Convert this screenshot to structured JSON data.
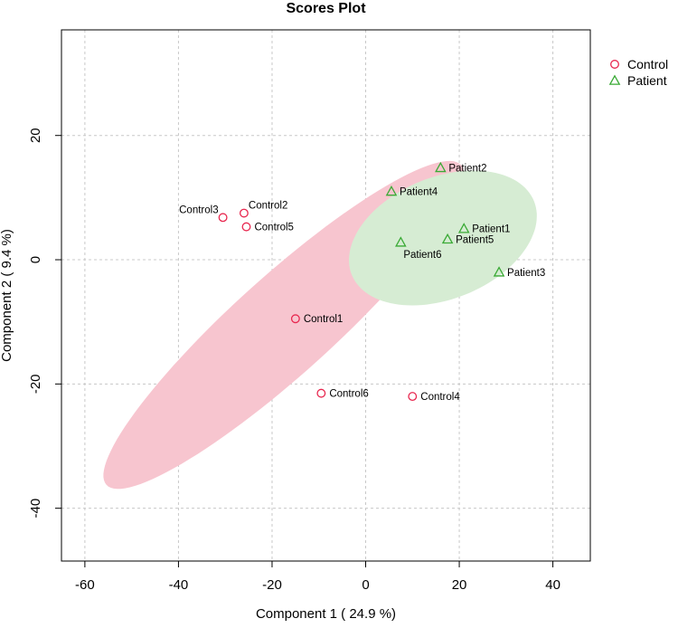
{
  "chart_data": {
    "type": "scatter",
    "title": "Scores Plot",
    "xlabel": "Component 1 ( 24.9 %)",
    "ylabel": "Component 2 ( 9.4 %)",
    "xlim": [
      -65,
      48
    ],
    "ylim": [
      -48.5,
      37
    ],
    "xticks": [
      -60,
      -40,
      -20,
      0,
      20,
      40
    ],
    "yticks": [
      -40,
      -20,
      0,
      20
    ],
    "tick_labels_x": [
      "-60",
      "-40",
      "-20",
      "0",
      "20",
      "40"
    ],
    "tick_labels_y": [
      "-40",
      "-20",
      "0",
      "20"
    ],
    "grid": true,
    "legend_position": "top-right",
    "series": [
      {
        "name": "Control",
        "marker": "circle",
        "color": "#e8274f",
        "ellipse_color": "#f7c5cf",
        "ellipse": {
          "center": [
            -17.5,
            -10.5
          ],
          "semi_major": 51,
          "semi_minor": 10.5,
          "angle_deg": 42
        },
        "points": [
          {
            "label": "Control1",
            "x": -15,
            "y": -9.5,
            "label_side": "right"
          },
          {
            "label": "Control2",
            "x": -26,
            "y": 7.5,
            "label_side": "right-up"
          },
          {
            "label": "Control3",
            "x": -30.5,
            "y": 6.8,
            "label_side": "left-up"
          },
          {
            "label": "Control4",
            "x": 10,
            "y": -22,
            "label_side": "right"
          },
          {
            "label": "Control5",
            "x": -25.5,
            "y": 5.3,
            "label_side": "right"
          },
          {
            "label": "Control6",
            "x": -9.5,
            "y": -21.5,
            "label_side": "right"
          }
        ]
      },
      {
        "name": "Patient",
        "marker": "triangle",
        "color": "#3aaa35",
        "ellipse_color": "#d6ecd3",
        "ellipse": {
          "center": [
            16.5,
            3.5
          ],
          "semi_major": 21,
          "semi_minor": 13,
          "angle_deg": 22
        },
        "points": [
          {
            "label": "Patient1",
            "x": 21,
            "y": 5,
            "label_side": "right"
          },
          {
            "label": "Patient2",
            "x": 16,
            "y": 14.8,
            "label_side": "right"
          },
          {
            "label": "Patient3",
            "x": 28.5,
            "y": -2,
            "label_side": "right"
          },
          {
            "label": "Patient4",
            "x": 5.5,
            "y": 11,
            "label_side": "right"
          },
          {
            "label": "Patient5",
            "x": 17.5,
            "y": 3.3,
            "label_side": "right"
          },
          {
            "label": "Patient6",
            "x": 7.5,
            "y": 2.8,
            "label_side": "right-down"
          }
        ]
      }
    ]
  }
}
